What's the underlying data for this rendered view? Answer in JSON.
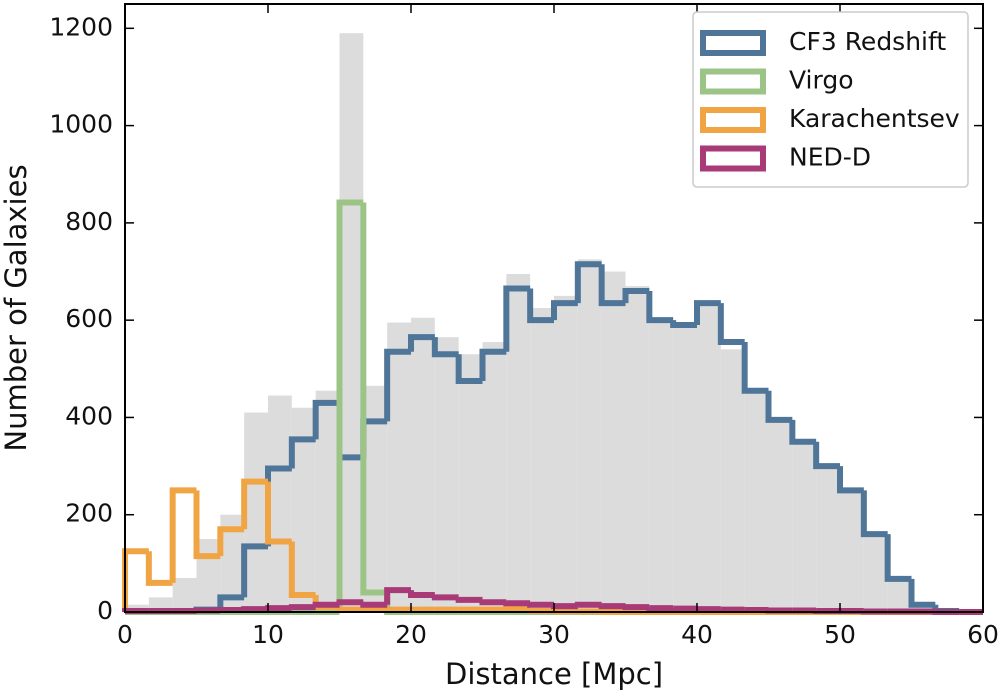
{
  "chart_data": {
    "type": "histogram",
    "x_label": "Distance [Mpc]",
    "y_label": "Number of Galaxies",
    "bins": [
      0,
      1.667,
      3.333,
      5,
      6.667,
      8.333,
      10,
      11.667,
      13.333,
      15,
      16.667,
      18.333,
      20,
      21.667,
      23.333,
      25,
      26.667,
      28.333,
      30,
      31.667,
      33.333,
      35,
      36.667,
      38.333,
      40,
      41.667,
      43.333,
      45,
      46.667,
      48.333,
      50,
      51.667,
      53.333,
      55,
      56.667,
      58.333,
      60
    ],
    "series": [
      {
        "color": "#dcdcdc",
        "style": "filled",
        "values": [
          15,
          30,
          70,
          150,
          200,
          410,
          445,
          420,
          455,
          1190,
          465,
          595,
          605,
          565,
          530,
          555,
          695,
          625,
          650,
          725,
          700,
          670,
          600,
          590,
          630,
          540,
          450,
          390,
          350,
          300,
          250,
          160,
          65,
          15,
          3,
          1
        ]
      },
      {
        "name": "CF3 Redshift",
        "color": "#4f7599",
        "style": "step",
        "values": [
          0,
          0,
          2,
          5,
          30,
          135,
          295,
          355,
          430,
          318,
          392,
          535,
          565,
          530,
          475,
          535,
          665,
          600,
          635,
          715,
          635,
          660,
          600,
          590,
          635,
          555,
          455,
          395,
          350,
          300,
          250,
          160,
          68,
          15,
          2,
          0
        ]
      },
      {
        "name": "Virgo",
        "color": "#9cc487",
        "style": "step",
        "values": [
          0,
          0,
          0,
          0,
          0,
          0,
          0,
          0,
          0,
          842,
          40,
          0,
          0,
          0,
          0,
          0,
          0,
          0,
          0,
          0,
          0,
          0,
          0,
          0,
          0,
          0,
          0,
          0,
          0,
          0,
          0,
          0,
          0,
          0,
          0,
          0
        ]
      },
      {
        "name": "Karachentsev",
        "color": "#f0a443",
        "style": "step",
        "values": [
          125,
          60,
          250,
          115,
          170,
          268,
          145,
          35,
          10,
          5,
          8,
          5,
          5,
          5,
          5,
          5,
          8,
          2,
          1,
          1,
          0,
          0,
          0,
          0,
          0,
          0,
          0,
          0,
          0,
          0,
          0,
          0,
          0,
          0,
          0,
          0
        ]
      },
      {
        "name": "NED-D",
        "color": "#a83a78",
        "style": "step",
        "values": [
          2,
          2,
          2,
          3,
          4,
          6,
          8,
          10,
          15,
          20,
          15,
          45,
          35,
          30,
          25,
          20,
          18,
          15,
          12,
          15,
          12,
          10,
          8,
          7,
          6,
          5,
          4,
          3,
          3,
          2,
          2,
          1,
          1,
          1,
          0,
          0
        ]
      }
    ],
    "xlim": [
      0,
      60
    ],
    "ylim": [
      0,
      1250
    ],
    "xticks": [
      0,
      10,
      20,
      30,
      40,
      50,
      60
    ],
    "yticks": [
      0,
      200,
      400,
      600,
      800,
      1000,
      1200
    ],
    "legend": "upper right"
  }
}
